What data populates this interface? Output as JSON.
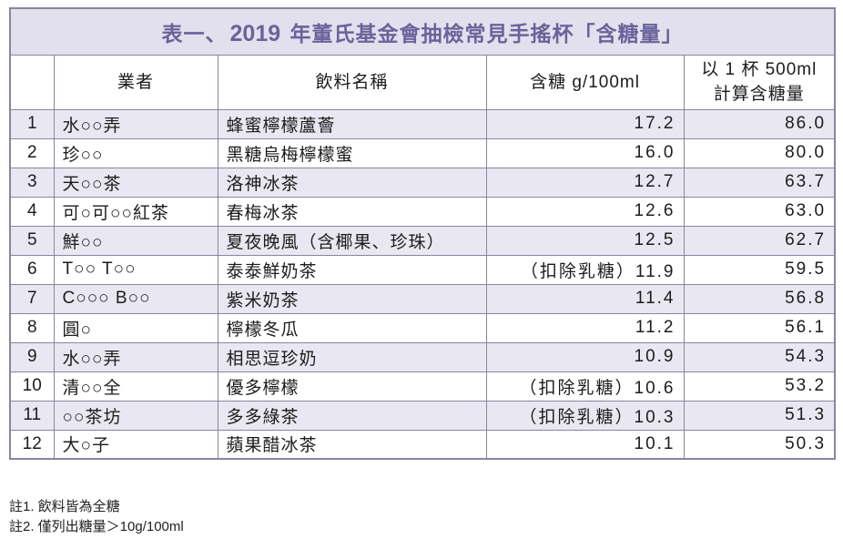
{
  "title": {
    "prefix": "表一、",
    "year": "2019",
    "suffix": " 年董氏基金會抽檢常見手搖杯「含糖量」"
  },
  "table": {
    "headers": {
      "index": "",
      "vendor": "業者",
      "drink": "飲料名稱",
      "sugar_per_100ml": "含糖 g/100ml",
      "per_cup_line1": "以 1 杯 500ml",
      "per_cup_line2": "計算含糖量"
    },
    "rows": [
      {
        "no": "1",
        "vendor": "水○○弄",
        "drink": "蜂蜜檸檬蘆薈",
        "sugar": "17.2",
        "per_cup": "86.0"
      },
      {
        "no": "2",
        "vendor": "珍○○",
        "drink": "黑糖烏梅檸檬蜜",
        "sugar": "16.0",
        "per_cup": "80.0"
      },
      {
        "no": "3",
        "vendor": "天○○茶",
        "drink": "洛神冰茶",
        "sugar": "12.7",
        "per_cup": "63.7"
      },
      {
        "no": "4",
        "vendor": "可○可○○紅茶",
        "drink": "春梅冰茶",
        "sugar": "12.6",
        "per_cup": "63.0"
      },
      {
        "no": "5",
        "vendor": "鮮○○",
        "drink": "夏夜晚風（含椰果、珍珠）",
        "sugar": "12.5",
        "per_cup": "62.7"
      },
      {
        "no": "6",
        "vendor": "T○○ T○○",
        "drink": "泰泰鮮奶茶",
        "sugar": "（扣除乳糖）11.9",
        "per_cup": "59.5"
      },
      {
        "no": "7",
        "vendor": "C○○○ B○○",
        "drink": "紫米奶茶",
        "sugar": "11.4",
        "per_cup": "56.8"
      },
      {
        "no": "8",
        "vendor": "圓○",
        "drink": "檸檬冬瓜",
        "sugar": "11.2",
        "per_cup": "56.1"
      },
      {
        "no": "9",
        "vendor": "水○○弄",
        "drink": "相思逗珍奶",
        "sugar": "10.9",
        "per_cup": "54.3"
      },
      {
        "no": "10",
        "vendor": "清○○全",
        "drink": "優多檸檬",
        "sugar": "（扣除乳糖）10.6",
        "per_cup": "53.2"
      },
      {
        "no": "11",
        "vendor": "○○茶坊",
        "drink": "多多綠茶",
        "sugar": "（扣除乳糖）10.3",
        "per_cup": "51.3"
      },
      {
        "no": "12",
        "vendor": "大○子",
        "drink": "蘋果醋冰茶",
        "sugar": "10.1",
        "per_cup": "50.3"
      }
    ]
  },
  "notes": [
    "註1. 飲料皆為全糖",
    "註2. 僅列出糖量＞10g/100ml"
  ],
  "colors": {
    "title_bg": "#E2E0ED",
    "title_text": "#6A639B",
    "stripe_bg": "#E9E8F2",
    "border": "#8786A0",
    "text": "#1C1C1C",
    "note_text": "#212121"
  }
}
